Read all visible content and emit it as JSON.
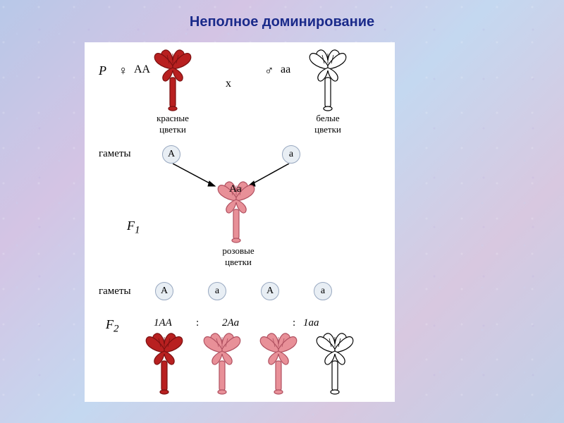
{
  "title": "Неполное доминирование",
  "title_color": "#1a2a8a",
  "title_fontsize": 20,
  "panel_bg": "#ffffff",
  "colors": {
    "red": "#b82020",
    "pink": "#e89098",
    "white": "#ffffff",
    "outline": "#000000",
    "circle_bg": "#e8eef4",
    "circle_border": "#98a8c0"
  },
  "generation_P": {
    "label": "P",
    "female_sym": "♀",
    "male_sym": "♂",
    "cross_sym": "х",
    "left": {
      "genotype": "AA",
      "caption": "красные\nцветки",
      "color": "red"
    },
    "right": {
      "genotype": "aa",
      "caption": "белые\nцветки",
      "color": "white"
    }
  },
  "gametes_label": "гаметы",
  "gametes_P": {
    "left": "A",
    "right": "a"
  },
  "generation_F1": {
    "label": "F",
    "sub": "1",
    "genotype": "Aa",
    "caption": "розовые\nцветки",
    "color": "pink"
  },
  "gametes_F1": [
    "A",
    "a",
    "A",
    "a"
  ],
  "generation_F2": {
    "label": "F",
    "sub": "2",
    "ratio": [
      "1AA",
      "2Aa",
      "1aa"
    ],
    "sep": ":",
    "phenotypes": [
      "red",
      "pink",
      "pink",
      "white"
    ]
  }
}
